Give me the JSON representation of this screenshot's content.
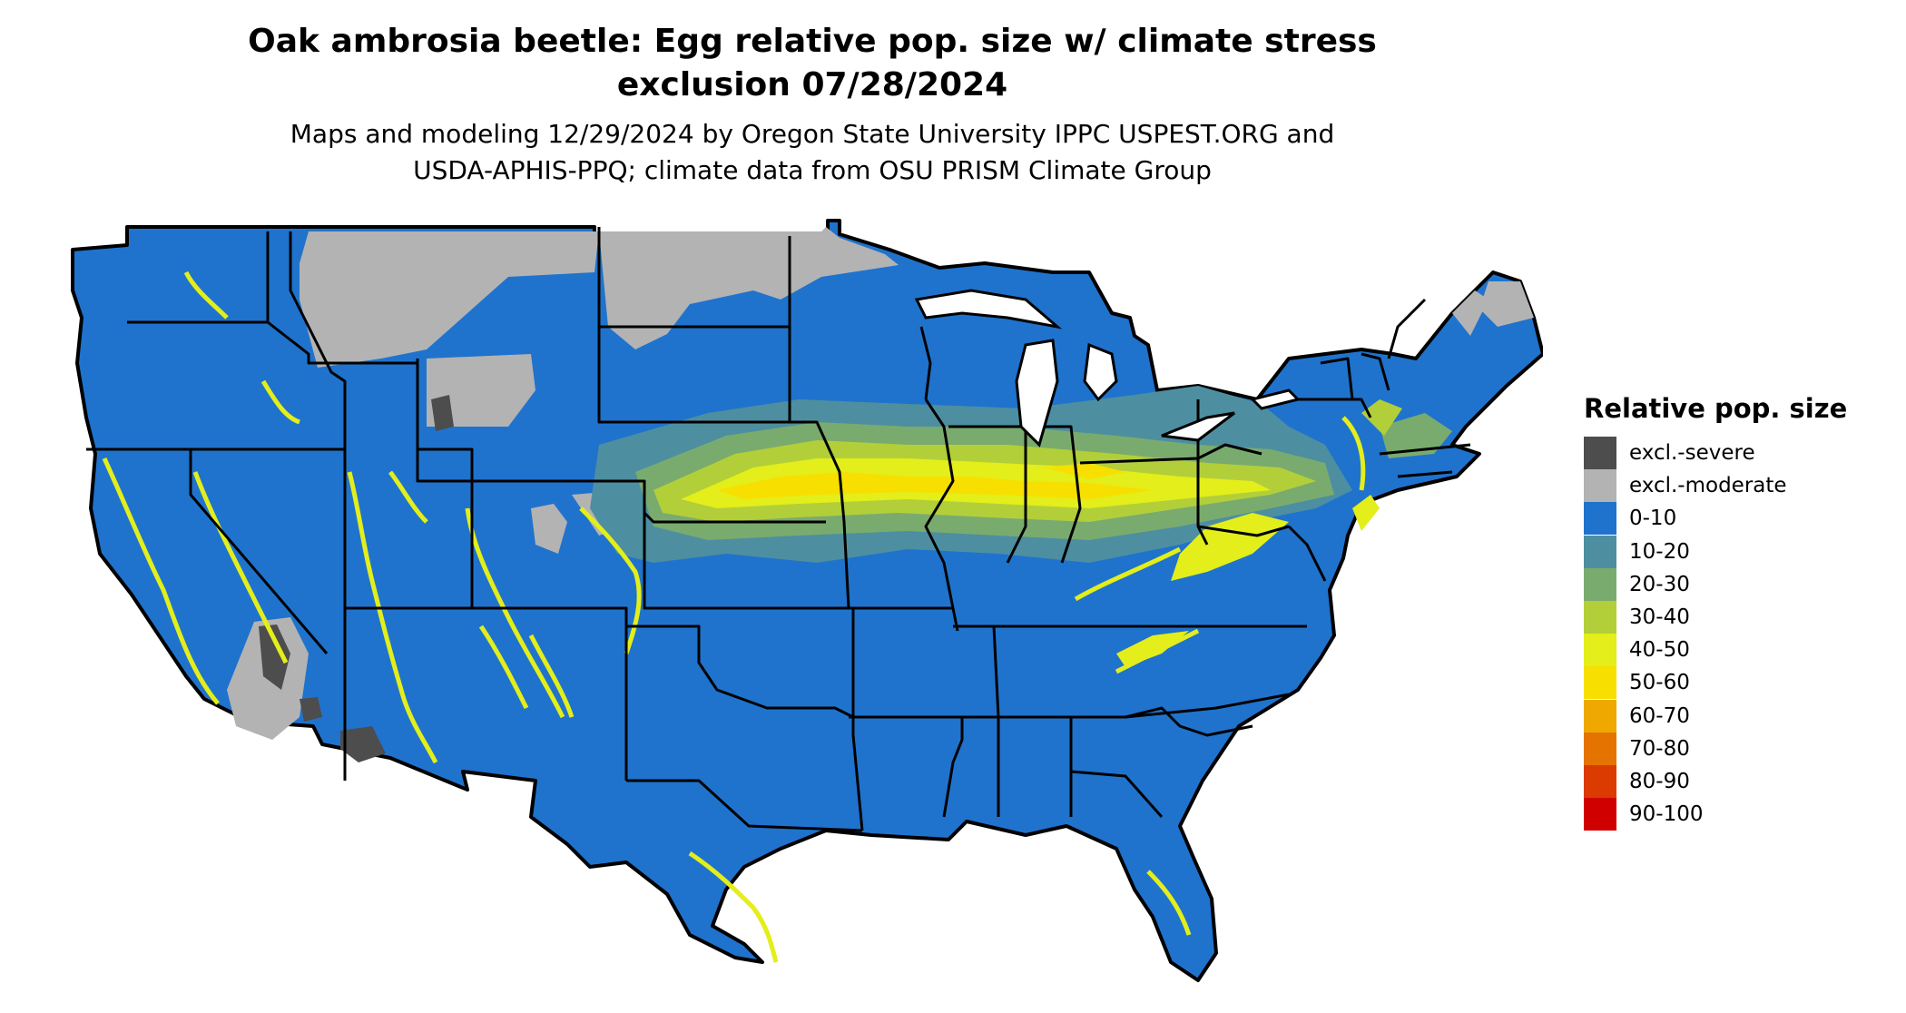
{
  "title_line1": "Oak ambrosia beetle: Egg relative pop. size w/ climate stress",
  "title_line2": "exclusion 07/28/2024",
  "subtitle_line1": "Maps and modeling 12/29/2024 by Oregon State University IPPC USPEST.ORG and",
  "subtitle_line2": "USDA-APHIS-PPQ; climate data from OSU PRISM Climate Group",
  "map": {
    "region": "Contiguous United States",
    "base_color": "#1f73cd",
    "outline_color": "#000000"
  },
  "legend": {
    "title": "Relative pop. size",
    "items": [
      {
        "label": "excl.-severe",
        "color": "#4d4d4d"
      },
      {
        "label": "excl.-moderate",
        "color": "#b3b3b3"
      },
      {
        "label": "0-10",
        "color": "#1f73cd"
      },
      {
        "label": "10-20",
        "color": "#4d8fa0"
      },
      {
        "label": "20-30",
        "color": "#7aab6e"
      },
      {
        "label": "30-40",
        "color": "#b2cf3a"
      },
      {
        "label": "40-50",
        "color": "#e3ee1a"
      },
      {
        "label": "50-60",
        "color": "#f7e000"
      },
      {
        "label": "60-70",
        "color": "#eea800"
      },
      {
        "label": "70-80",
        "color": "#e47300"
      },
      {
        "label": "80-90",
        "color": "#db3a00"
      },
      {
        "label": "90-100",
        "color": "#d10000"
      }
    ]
  }
}
